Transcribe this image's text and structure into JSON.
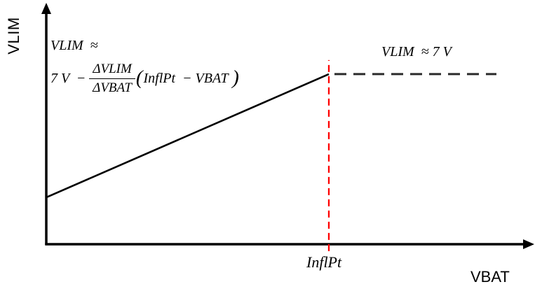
{
  "figure": {
    "y_axis_label": "VLIM",
    "x_axis_label": "VBAT",
    "inflection_label": "InflPt",
    "flat_region_label": "VLIM  ≈ 7 V",
    "equation": {
      "line1": "VLIM  ≈",
      "prefix": "7 V  −",
      "numerator": "ΔVLIM",
      "denominator": "ΔVBAT",
      "open_paren": "(",
      "argument": "InflPt  − VBAT ",
      "close_paren": ")"
    }
  },
  "colors": {
    "axis": "#000000",
    "text": "#000000",
    "linear_line": "#000000",
    "flat_dashed_line": "#2a2a2a",
    "inflection_marker": "#ff0000",
    "background": "#ffffff"
  },
  "chart_data": {
    "type": "line",
    "title": "",
    "xlabel": "VBAT",
    "ylabel": "VLIM",
    "grid": false,
    "legend": "none",
    "axes_scale": "conceptual (no numeric ticks)",
    "x_axis": {
      "ticks": [
        {
          "pos_frac": 0.579,
          "label": "InflPt"
        }
      ]
    },
    "y_axis": {
      "flat_region_value": "7 V"
    },
    "series": [
      {
        "name": "linear-region",
        "style": "solid",
        "color": "#000000",
        "points_frac": [
          [
            0.0,
            0.194
          ],
          [
            0.579,
            0.712
          ]
        ],
        "equation": "VLIM ≈ 7 V − (ΔVLIM/ΔVBAT)(InflPt − VBAT)"
      },
      {
        "name": "flat-region",
        "style": "dashed",
        "color": "#2a2a2a",
        "points_frac": [
          [
            0.5905,
            0.712
          ],
          [
            0.9224,
            0.712
          ]
        ],
        "equation": "VLIM ≈ 7 V"
      }
    ],
    "markers": [
      {
        "name": "inflection-marker",
        "type": "vline",
        "style": "dashed",
        "color": "#ff0000",
        "x_frac": 0.579,
        "y_from_frac": -0.032,
        "y_to_frac": 0.771
      }
    ],
    "notes": "VLIM rises linearly with VBAT up to the inflection point InflPt, then clamps at approximately 7 V."
  }
}
